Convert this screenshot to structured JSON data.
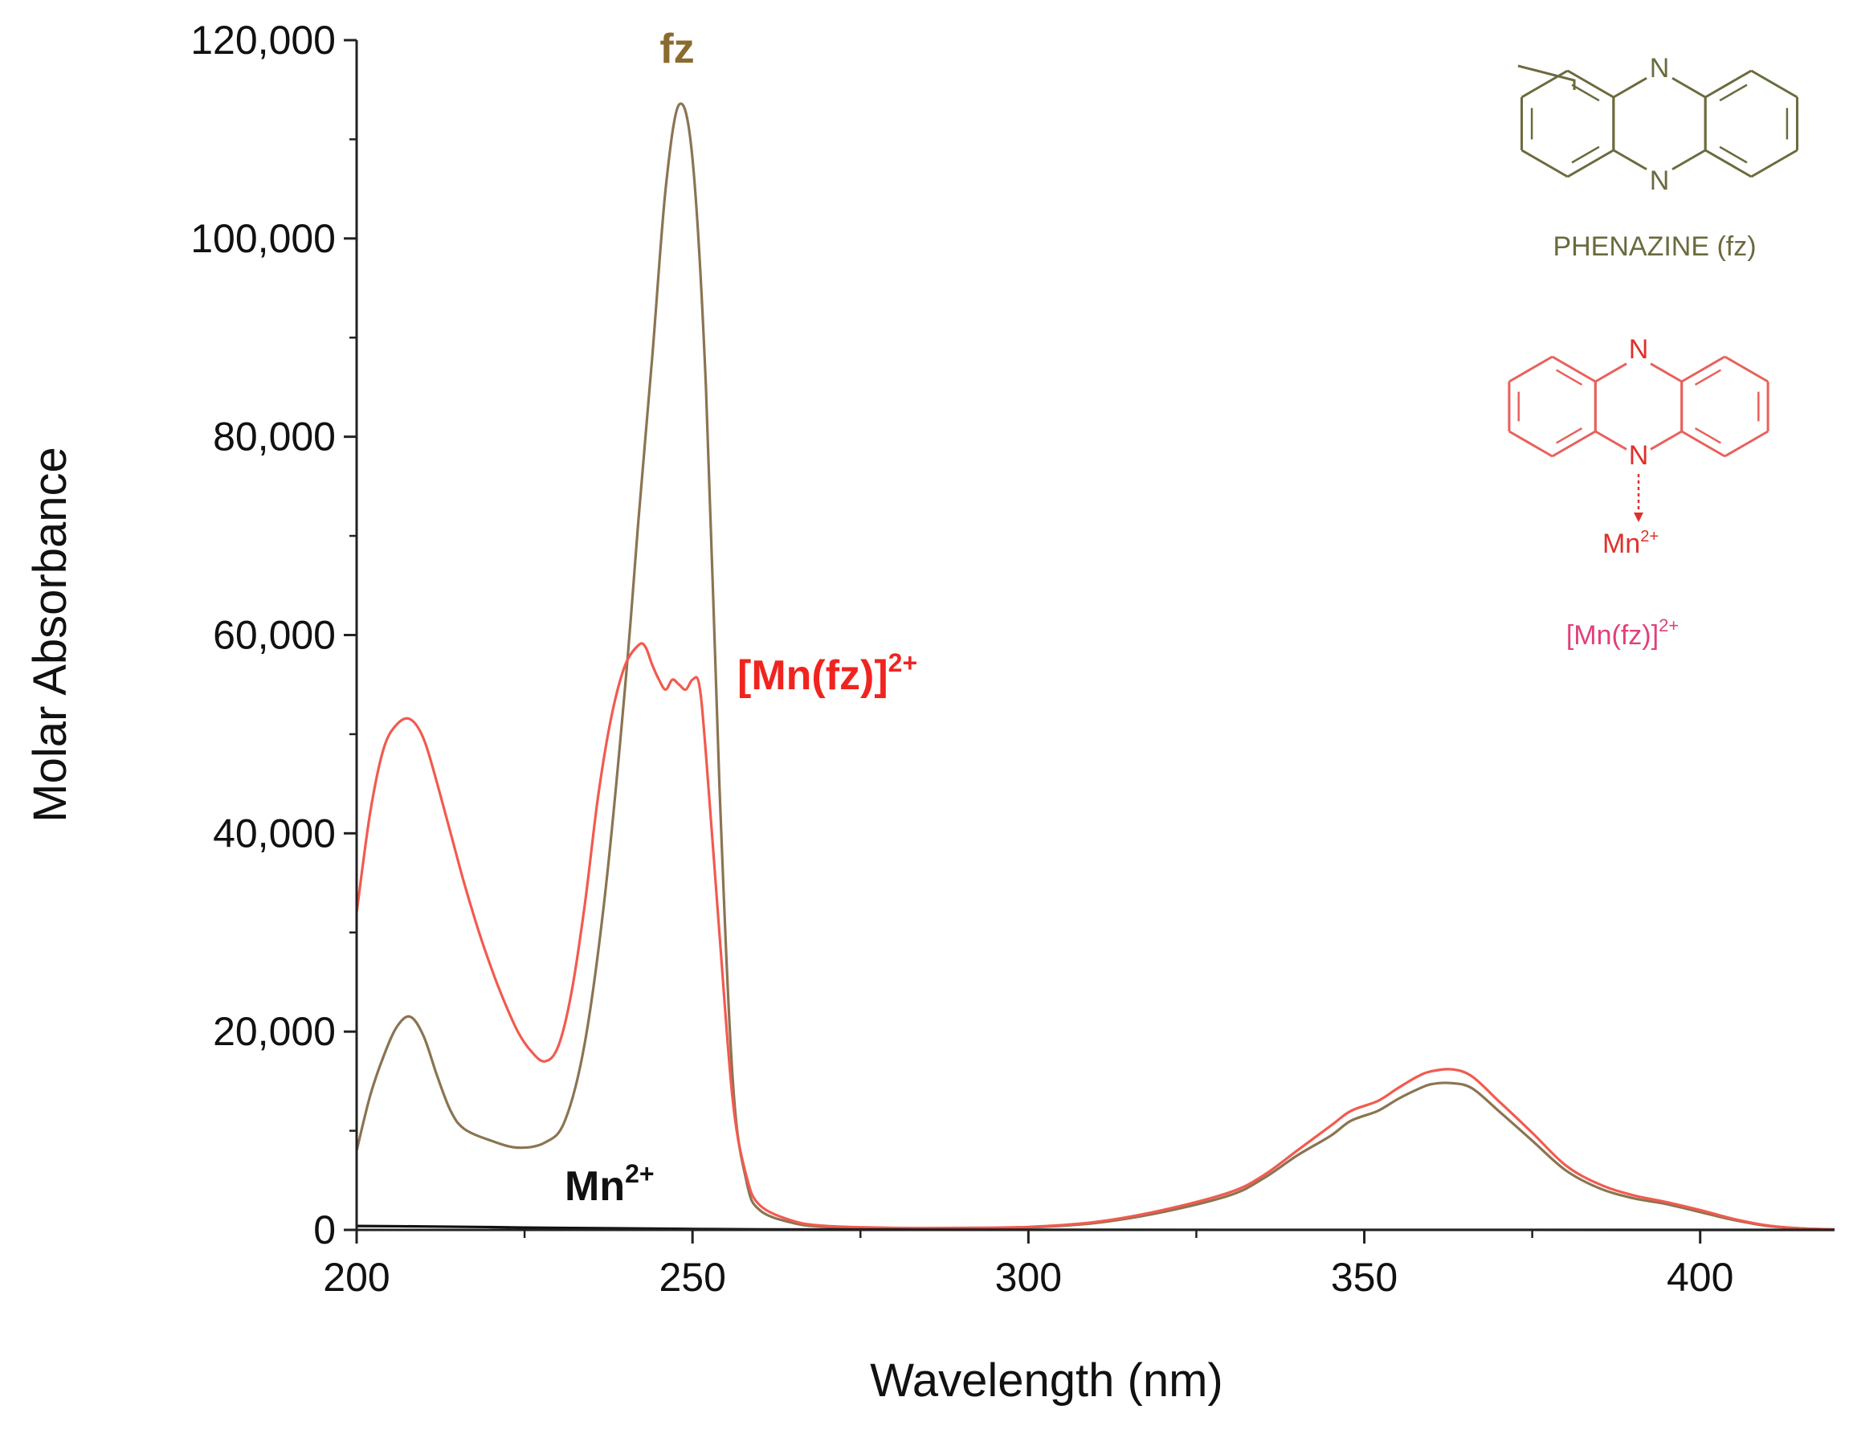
{
  "chart_data": {
    "type": "line",
    "title": "",
    "xlabel": "Wavelength (nm)",
    "ylabel": "Molar Absorbance",
    "xlim": [
      200,
      420
    ],
    "ylim": [
      0,
      120000
    ],
    "xticks": [
      200,
      250,
      300,
      350,
      400
    ],
    "xtick_labels": [
      "200",
      "250",
      "300",
      "350",
      "400"
    ],
    "yticks": [
      0,
      20000,
      40000,
      60000,
      80000,
      100000,
      120000
    ],
    "ytick_labels": [
      "0",
      "20,000",
      "40,000",
      "60,000",
      "80,000",
      "100,000",
      "120,000"
    ],
    "grid": false,
    "series": [
      {
        "name": "fz",
        "color": "#8B7452",
        "points": [
          [
            200,
            8000
          ],
          [
            202,
            13500
          ],
          [
            204,
            17500
          ],
          [
            206,
            20500
          ],
          [
            208,
            21500
          ],
          [
            210,
            19500
          ],
          [
            212,
            15500
          ],
          [
            214,
            12000
          ],
          [
            216,
            10200
          ],
          [
            220,
            9000
          ],
          [
            224,
            8300
          ],
          [
            228,
            8800
          ],
          [
            231,
            11000
          ],
          [
            234,
            19000
          ],
          [
            237,
            34000
          ],
          [
            240,
            55000
          ],
          [
            242,
            72000
          ],
          [
            244,
            88000
          ],
          [
            246,
            105000
          ],
          [
            248,
            113500
          ],
          [
            250,
            108000
          ],
          [
            252,
            85000
          ],
          [
            254,
            45000
          ],
          [
            256,
            15000
          ],
          [
            258,
            5000
          ],
          [
            260,
            2000
          ],
          [
            265,
            700
          ],
          [
            270,
            300
          ],
          [
            280,
            150
          ],
          [
            290,
            150
          ],
          [
            300,
            250
          ],
          [
            310,
            700
          ],
          [
            320,
            1800
          ],
          [
            330,
            3500
          ],
          [
            335,
            5200
          ],
          [
            340,
            7500
          ],
          [
            345,
            9500
          ],
          [
            348,
            11000
          ],
          [
            352,
            12000
          ],
          [
            355,
            13200
          ],
          [
            358,
            14200
          ],
          [
            360,
            14700
          ],
          [
            363,
            14800
          ],
          [
            366,
            14300
          ],
          [
            370,
            12000
          ],
          [
            375,
            9000
          ],
          [
            380,
            6000
          ],
          [
            385,
            4200
          ],
          [
            390,
            3200
          ],
          [
            395,
            2600
          ],
          [
            400,
            1800
          ],
          [
            405,
            1000
          ],
          [
            410,
            400
          ],
          [
            415,
            150
          ],
          [
            420,
            50
          ]
        ]
      },
      {
        "name": "[Mn(fz)]2+",
        "color": "#F25A4F",
        "points": [
          [
            200,
            32000
          ],
          [
            202,
            42000
          ],
          [
            204,
            48500
          ],
          [
            206,
            51000
          ],
          [
            208,
            51500
          ],
          [
            210,
            49500
          ],
          [
            212,
            45000
          ],
          [
            214,
            40000
          ],
          [
            216,
            35000
          ],
          [
            218,
            30500
          ],
          [
            220,
            26500
          ],
          [
            222,
            23000
          ],
          [
            224,
            20000
          ],
          [
            226,
            18000
          ],
          [
            228,
            17000
          ],
          [
            230,
            18500
          ],
          [
            232,
            24000
          ],
          [
            234,
            33000
          ],
          [
            236,
            44000
          ],
          [
            238,
            52000
          ],
          [
            240,
            57000
          ],
          [
            242,
            59000
          ],
          [
            243,
            58800
          ],
          [
            244,
            57000
          ],
          [
            245,
            55500
          ],
          [
            246,
            54500
          ],
          [
            247,
            55500
          ],
          [
            248,
            55000
          ],
          [
            249,
            54500
          ],
          [
            250,
            55500
          ],
          [
            251,
            55000
          ],
          [
            252,
            48000
          ],
          [
            254,
            30000
          ],
          [
            256,
            13000
          ],
          [
            258,
            5500
          ],
          [
            260,
            2500
          ],
          [
            265,
            900
          ],
          [
            270,
            400
          ],
          [
            280,
            200
          ],
          [
            290,
            200
          ],
          [
            300,
            300
          ],
          [
            310,
            800
          ],
          [
            320,
            2000
          ],
          [
            330,
            3800
          ],
          [
            335,
            5500
          ],
          [
            340,
            8000
          ],
          [
            345,
            10500
          ],
          [
            348,
            12000
          ],
          [
            352,
            13000
          ],
          [
            355,
            14300
          ],
          [
            358,
            15500
          ],
          [
            360,
            16000
          ],
          [
            363,
            16200
          ],
          [
            366,
            15500
          ],
          [
            370,
            13000
          ],
          [
            375,
            9800
          ],
          [
            380,
            6500
          ],
          [
            385,
            4600
          ],
          [
            390,
            3500
          ],
          [
            395,
            2800
          ],
          [
            400,
            2000
          ],
          [
            405,
            1100
          ],
          [
            410,
            450
          ],
          [
            415,
            150
          ],
          [
            420,
            50
          ]
        ]
      },
      {
        "name": "Mn2+",
        "color": "#111111",
        "points": [
          [
            200,
            400
          ],
          [
            210,
            350
          ],
          [
            220,
            280
          ],
          [
            230,
            200
          ],
          [
            240,
            150
          ],
          [
            250,
            100
          ],
          [
            260,
            60
          ],
          [
            280,
            30
          ],
          [
            300,
            10
          ],
          [
            420,
            0
          ]
        ]
      }
    ],
    "annotations": [
      {
        "text": "fz",
        "series": "fz",
        "color": "#8B6A2F"
      },
      {
        "text": "[Mn(fz)]",
        "sup": "2+",
        "series": "[Mn(fz)]2+",
        "color": "#F0241F"
      },
      {
        "text": "Mn",
        "sup": "2+",
        "series": "Mn2+",
        "color": "#111111"
      }
    ]
  },
  "structures": {
    "phenazine": {
      "atom_labels": [
        "N",
        "N"
      ],
      "caption": "PHENAZINE (fz)",
      "color": "#6B6A3E"
    },
    "complex": {
      "atom_labels": [
        "N",
        "N"
      ],
      "metal": "Mn",
      "metal_sup": "2+",
      "caption": "[Mn(fz)]",
      "caption_sup": "2+",
      "color": "#E9605A",
      "caption_color": "#E0407A"
    }
  }
}
